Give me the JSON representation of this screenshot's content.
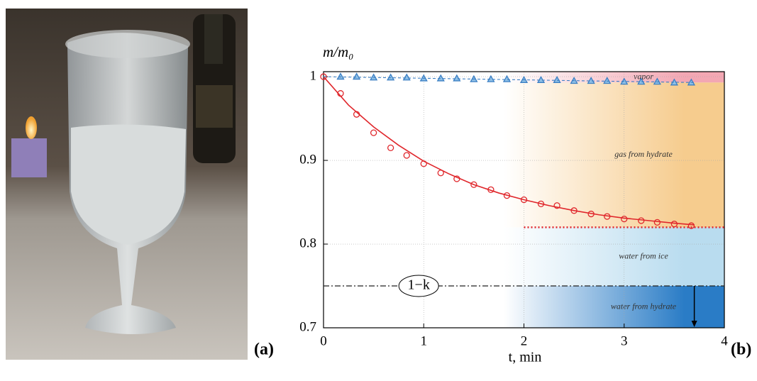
{
  "panel_labels": [
    "(a)",
    "(b)"
  ],
  "chart_data": {
    "type": "scatter",
    "y_label": "m/m₀",
    "x_label": "t, min",
    "xlim": [
      0,
      4
    ],
    "ylim": [
      0.7,
      1.006
    ],
    "xticks": [
      0,
      1,
      2,
      3,
      4
    ],
    "yticks": [
      0.7,
      0.8,
      0.9,
      1
    ],
    "grid": true,
    "regions": [
      {
        "label": "vapor",
        "y": [
          0.993,
          1.006
        ],
        "color": "#f3a7b3"
      },
      {
        "label": "gas from hydrate",
        "y": [
          0.82,
          0.993
        ],
        "color": "#f6cc8e"
      },
      {
        "label": "water from ice",
        "y": [
          0.75,
          0.82
        ],
        "color": "#b9dcef"
      },
      {
        "label": "water from hydrate",
        "y": [
          0.7,
          0.75
        ],
        "color": "#2a7cc6"
      }
    ],
    "series": [
      {
        "color": "#e0262b",
        "marker": "circle",
        "x": [
          0,
          0.17,
          0.33,
          0.5,
          0.67,
          0.83,
          1,
          1.17,
          1.33,
          1.5,
          1.67,
          1.83,
          2,
          2.17,
          2.33,
          2.5,
          2.67,
          2.83,
          3,
          3.17,
          3.33,
          3.5,
          3.67
        ],
        "values": [
          1.0,
          0.98,
          0.955,
          0.933,
          0.915,
          0.906,
          0.896,
          0.885,
          0.878,
          0.871,
          0.865,
          0.858,
          0.853,
          0.848,
          0.846,
          0.84,
          0.836,
          0.833,
          0.83,
          0.828,
          0.826,
          0.824,
          0.822
        ]
      },
      {
        "color": "#3b7fc4",
        "marker": "triangle",
        "x": [
          0.17,
          0.33,
          0.5,
          0.67,
          0.83,
          1,
          1.17,
          1.33,
          1.5,
          1.67,
          1.83,
          2,
          2.17,
          2.33,
          2.5,
          2.67,
          2.83,
          3,
          3.17,
          3.33,
          3.5,
          3.67
        ],
        "values": [
          1.0,
          1.0,
          0.999,
          0.999,
          0.999,
          0.998,
          0.998,
          0.998,
          0.997,
          0.997,
          0.997,
          0.996,
          0.996,
          0.996,
          0.995,
          0.995,
          0.995,
          0.994,
          0.994,
          0.994,
          0.993,
          0.993
        ]
      },
      {
        "color": "#e0262b",
        "style": "solid",
        "x": [
          0,
          0.25,
          0.5,
          0.75,
          1,
          1.25,
          1.5,
          1.75,
          2,
          2.25,
          2.5,
          2.75,
          3,
          3.25,
          3.5,
          3.7
        ],
        "values": [
          1.0,
          0.966,
          0.94,
          0.918,
          0.899,
          0.884,
          0.871,
          0.861,
          0.853,
          0.846,
          0.84,
          0.835,
          0.831,
          0.828,
          0.825,
          0.823
        ]
      },
      {
        "color": "#3b7fc4",
        "style": "dashed",
        "x": [
          0,
          3.7
        ],
        "values": [
          1.0,
          0.993
        ]
      }
    ],
    "hlines": [
      {
        "y": 0.82,
        "x": [
          2,
          4
        ],
        "color": "#e0262b",
        "style": "dotted"
      },
      {
        "y": 0.75,
        "x": [
          0,
          4
        ],
        "color": "#222222",
        "style": "dashdot",
        "label": "1−k",
        "label_x": 0.95
      }
    ],
    "arrow": {
      "x": 3.7,
      "y": [
        0.75,
        0.7
      ]
    }
  }
}
